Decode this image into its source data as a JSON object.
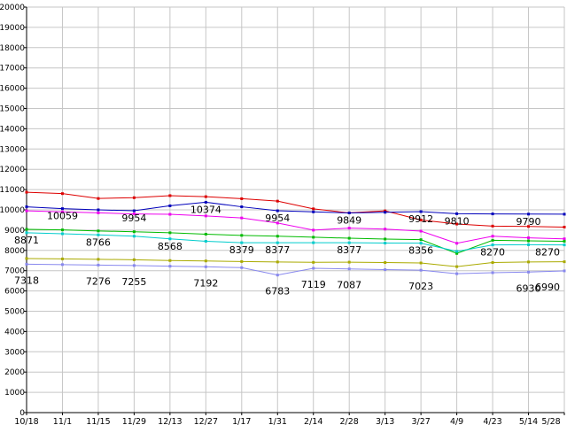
{
  "page": {
    "background": "#ffffff",
    "grid_color": "#c6c6c6",
    "axis_color": "#000000",
    "label_color": "#000000"
  },
  "chart_data": {
    "type": "line",
    "title": "",
    "xlabel": "",
    "ylabel": "",
    "ylim": [
      0,
      20000
    ],
    "ytick_step": 1000,
    "grid": true,
    "legend_position": "none",
    "x_tick_labels": [
      "10/18",
      "11/1",
      "11/15",
      "11/29",
      "12/13",
      "12/27",
      "1/17",
      "1/31",
      "2/14",
      "2/28",
      "3/13",
      "3/27",
      "4/9",
      "4/23",
      "5/14",
      "5/28"
    ],
    "series": [
      {
        "name": "series-red",
        "color": "#dd0000",
        "values": [
          10870,
          10800,
          10560,
          10600,
          10700,
          10650,
          10550,
          10430,
          10050,
          9850,
          9950,
          9500,
          9300,
          9200,
          9180,
          9150
        ]
      },
      {
        "name": "series-navy",
        "color": "#0000bb",
        "values": [
          10150,
          10059,
          10000,
          9954,
          10200,
          10374,
          10150,
          9954,
          9900,
          9849,
          9880,
          9912,
          9810,
          9800,
          9790,
          9785
        ],
        "label_dy": 12,
        "labels": {
          "1": "10059",
          "3": "9954",
          "5": "10374",
          "7": "9954",
          "9": "9849",
          "11": "9912",
          "12": "9810",
          "14": "9790"
        }
      },
      {
        "name": "series-magenta",
        "color": "#ee00ee",
        "values": [
          9950,
          9900,
          9850,
          9800,
          9780,
          9700,
          9600,
          9350,
          9000,
          9100,
          9050,
          8950,
          8350,
          8700,
          8620,
          8570
        ]
      },
      {
        "name": "series-green",
        "color": "#00bb00",
        "values": [
          9040,
          9010,
          8960,
          8920,
          8870,
          8800,
          8740,
          8700,
          8650,
          8600,
          8560,
          8530,
          7850,
          8500,
          8470,
          8450
        ]
      },
      {
        "name": "series-cyan",
        "color": "#00cccc",
        "values": [
          8871,
          8820,
          8766,
          8700,
          8568,
          8450,
          8379,
          8377,
          8380,
          8377,
          8360,
          8356,
          7950,
          8270,
          8280,
          8270
        ],
        "label_dy": 12,
        "labels": {
          "0": "8871",
          "2": "8766",
          "4": "8568",
          "6": "8379",
          "7": "8377",
          "9": "8377",
          "11": "8356",
          "13": "8270",
          "15": "8270"
        }
      },
      {
        "name": "series-olive",
        "color": "#aaaa00",
        "values": [
          7600,
          7580,
          7560,
          7540,
          7500,
          7480,
          7450,
          7430,
          7410,
          7420,
          7400,
          7380,
          7200,
          7400,
          7430,
          7440
        ]
      },
      {
        "name": "series-lavender",
        "color": "#8888ee",
        "values": [
          7318,
          7300,
          7276,
          7255,
          7220,
          7192,
          7150,
          6783,
          7119,
          7087,
          7050,
          7023,
          6850,
          6900,
          6930,
          6990
        ],
        "label_dy": 22,
        "labels": {
          "0": "7318",
          "2": "7276",
          "3": "7255",
          "5": "7192",
          "7": "6783",
          "8": "7119",
          "9": "7087",
          "11": "7023",
          "14": "6930",
          "15": "6990"
        }
      }
    ]
  }
}
